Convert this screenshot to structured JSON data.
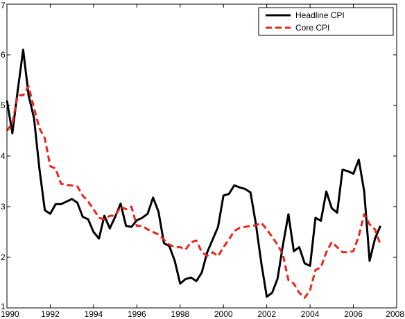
{
  "chart_data": {
    "type": "line",
    "xlim": [
      1990,
      2008
    ],
    "ylim": [
      1,
      7
    ],
    "xticks": [
      1990,
      1992,
      1994,
      1996,
      1998,
      2000,
      2002,
      2004,
      2006,
      2008
    ],
    "yticks": [
      1,
      2,
      3,
      4,
      5,
      6,
      7
    ],
    "grid": false,
    "legend_position": "top-right",
    "series": [
      {
        "name": "Headline CPI",
        "color": "#000000",
        "line_style": "solid",
        "points": [
          [
            1990.0,
            5.1
          ],
          [
            1990.25,
            4.45
          ],
          [
            1990.5,
            5.3
          ],
          [
            1990.75,
            6.1
          ],
          [
            1991.0,
            5.2
          ],
          [
            1991.25,
            4.75
          ],
          [
            1991.5,
            3.75
          ],
          [
            1991.75,
            2.93
          ],
          [
            1992.0,
            2.86
          ],
          [
            1992.25,
            3.05
          ],
          [
            1992.5,
            3.05
          ],
          [
            1992.75,
            3.1
          ],
          [
            1993.0,
            3.15
          ],
          [
            1993.25,
            3.08
          ],
          [
            1993.5,
            2.8
          ],
          [
            1993.75,
            2.75
          ],
          [
            1994.0,
            2.5
          ],
          [
            1994.25,
            2.37
          ],
          [
            1994.5,
            2.82
          ],
          [
            1994.75,
            2.57
          ],
          [
            1995.0,
            2.8
          ],
          [
            1995.25,
            3.06
          ],
          [
            1995.5,
            2.62
          ],
          [
            1995.75,
            2.6
          ],
          [
            1996.0,
            2.73
          ],
          [
            1996.25,
            2.78
          ],
          [
            1996.5,
            2.86
          ],
          [
            1996.75,
            3.18
          ],
          [
            1997.0,
            2.9
          ],
          [
            1997.25,
            2.28
          ],
          [
            1997.5,
            2.22
          ],
          [
            1997.75,
            1.93
          ],
          [
            1998.0,
            1.48
          ],
          [
            1998.25,
            1.57
          ],
          [
            1998.5,
            1.6
          ],
          [
            1998.75,
            1.53
          ],
          [
            1999.0,
            1.7
          ],
          [
            1999.25,
            2.1
          ],
          [
            1999.5,
            2.35
          ],
          [
            1999.75,
            2.6
          ],
          [
            2000.0,
            3.22
          ],
          [
            2000.25,
            3.25
          ],
          [
            2000.5,
            3.42
          ],
          [
            2000.75,
            3.38
          ],
          [
            2001.0,
            3.35
          ],
          [
            2001.25,
            3.28
          ],
          [
            2001.5,
            2.65
          ],
          [
            2001.75,
            1.88
          ],
          [
            2002.0,
            1.22
          ],
          [
            2002.25,
            1.3
          ],
          [
            2002.5,
            1.58
          ],
          [
            2002.75,
            2.25
          ],
          [
            2003.0,
            2.85
          ],
          [
            2003.25,
            2.12
          ],
          [
            2003.5,
            2.2
          ],
          [
            2003.75,
            1.88
          ],
          [
            2004.0,
            1.83
          ],
          [
            2004.25,
            2.78
          ],
          [
            2004.5,
            2.72
          ],
          [
            2004.75,
            3.3
          ],
          [
            2005.0,
            2.97
          ],
          [
            2005.25,
            2.88
          ],
          [
            2005.5,
            3.73
          ],
          [
            2005.75,
            3.7
          ],
          [
            2006.0,
            3.65
          ],
          [
            2006.25,
            3.93
          ],
          [
            2006.5,
            3.3
          ],
          [
            2006.75,
            1.93
          ],
          [
            2007.0,
            2.37
          ],
          [
            2007.25,
            2.62
          ]
        ]
      },
      {
        "name": "Core CPI",
        "color": "#e8251b",
        "line_style": "dashed",
        "points": [
          [
            1990.0,
            4.5
          ],
          [
            1990.25,
            4.65
          ],
          [
            1990.5,
            5.2
          ],
          [
            1990.75,
            5.2
          ],
          [
            1991.0,
            5.38
          ],
          [
            1991.25,
            4.95
          ],
          [
            1991.5,
            4.55
          ],
          [
            1991.75,
            4.35
          ],
          [
            1992.0,
            3.8
          ],
          [
            1992.25,
            3.75
          ],
          [
            1992.5,
            3.45
          ],
          [
            1992.75,
            3.43
          ],
          [
            1993.0,
            3.42
          ],
          [
            1993.25,
            3.4
          ],
          [
            1993.5,
            3.22
          ],
          [
            1993.75,
            3.1
          ],
          [
            1994.0,
            2.95
          ],
          [
            1994.25,
            2.78
          ],
          [
            1994.5,
            2.75
          ],
          [
            1994.75,
            2.82
          ],
          [
            1995.0,
            2.82
          ],
          [
            1995.25,
            3.0
          ],
          [
            1995.5,
            2.95
          ],
          [
            1995.75,
            3.0
          ],
          [
            1996.0,
            2.62
          ],
          [
            1996.25,
            2.62
          ],
          [
            1996.5,
            2.55
          ],
          [
            1996.75,
            2.5
          ],
          [
            1997.0,
            2.45
          ],
          [
            1997.25,
            2.35
          ],
          [
            1997.5,
            2.25
          ],
          [
            1997.75,
            2.2
          ],
          [
            1998.0,
            2.2
          ],
          [
            1998.25,
            2.15
          ],
          [
            1998.5,
            2.3
          ],
          [
            1998.75,
            2.33
          ],
          [
            1999.0,
            2.1
          ],
          [
            1999.25,
            2.03
          ],
          [
            1999.5,
            2.1
          ],
          [
            1999.75,
            2.02
          ],
          [
            2000.0,
            2.2
          ],
          [
            2000.25,
            2.35
          ],
          [
            2000.5,
            2.52
          ],
          [
            2000.75,
            2.58
          ],
          [
            2001.0,
            2.6
          ],
          [
            2001.25,
            2.62
          ],
          [
            2001.5,
            2.63
          ],
          [
            2001.75,
            2.68
          ],
          [
            2002.0,
            2.55
          ],
          [
            2002.25,
            2.4
          ],
          [
            2002.5,
            2.25
          ],
          [
            2002.75,
            2.05
          ],
          [
            2003.0,
            1.55
          ],
          [
            2003.25,
            1.48
          ],
          [
            2003.5,
            1.3
          ],
          [
            2003.75,
            1.2
          ],
          [
            2004.0,
            1.35
          ],
          [
            2004.25,
            1.75
          ],
          [
            2004.5,
            1.8
          ],
          [
            2004.75,
            2.1
          ],
          [
            2005.0,
            2.3
          ],
          [
            2005.25,
            2.2
          ],
          [
            2005.5,
            2.1
          ],
          [
            2005.75,
            2.1
          ],
          [
            2006.0,
            2.12
          ],
          [
            2006.25,
            2.42
          ],
          [
            2006.5,
            2.85
          ],
          [
            2006.75,
            2.65
          ],
          [
            2007.0,
            2.55
          ],
          [
            2007.25,
            2.25
          ]
        ]
      }
    ]
  }
}
